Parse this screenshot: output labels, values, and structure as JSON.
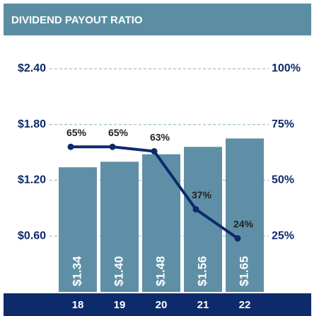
{
  "chart_data": {
    "type": "bar",
    "title": "DIVIDEND PAYOUT RATIO",
    "categories": [
      "18",
      "19",
      "20",
      "21",
      "22"
    ],
    "series": [
      {
        "type": "bar",
        "color": "#5f8fa6",
        "values": [
          1.34,
          1.4,
          1.48,
          1.56,
          1.65
        ],
        "value_labels": [
          "$1.34",
          "$1.40",
          "$1.48",
          "$1.56",
          "$1.65"
        ]
      },
      {
        "type": "line",
        "axis": "y2",
        "color": "#0d2a6b",
        "values": [
          65,
          65,
          63,
          37,
          24
        ],
        "value_labels": [
          "65%",
          "65%",
          "63%",
          "37%",
          "24%"
        ]
      }
    ],
    "ylim": [
      0,
      2.4
    ],
    "yticks": [
      {
        "value": 0.6,
        "label": "$0.60"
      },
      {
        "value": 1.2,
        "label": "$1.20"
      },
      {
        "value": 1.8,
        "label": "$1.80"
      },
      {
        "value": 2.4,
        "label": "$2.40"
      }
    ],
    "y2lim": [
      0,
      100
    ],
    "y2ticks": [
      {
        "value": 25,
        "label": "25%"
      },
      {
        "value": 50,
        "label": "50%"
      },
      {
        "value": 75,
        "label": "75%"
      },
      {
        "value": 100,
        "label": "100%"
      }
    ],
    "grid": true
  }
}
